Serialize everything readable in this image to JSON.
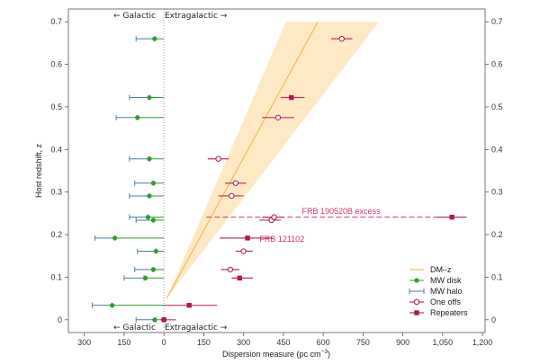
{
  "colors": {
    "dmz_line": "#f2b441",
    "dmz_band": "#fde9c4",
    "mw_disk": "#2ca02c",
    "mw_halo": "#4a7fa8",
    "frb": "#b0174f",
    "frb_err": "#c5305f",
    "annot": "#d6336c",
    "zero_line": "#888888"
  },
  "chart_data": {
    "type": "scatter",
    "xlabel": "Dispersion measure (pc cm",
    "xlabel_sup": "−3",
    "xlabel_close": ")",
    "ylabel": "Host redshift, z",
    "xlim": [
      -360,
      1210
    ],
    "ylim": [
      -0.03,
      0.73
    ],
    "xticks": [
      -300,
      -150,
      0,
      150,
      300,
      450,
      600,
      750,
      900,
      1050,
      1200
    ],
    "xtick_labels": [
      "300",
      "150",
      "0",
      "150",
      "300",
      "450",
      "600",
      "750",
      "900",
      "1,050",
      "1,200"
    ],
    "yticks": [
      0,
      0.1,
      0.2,
      0.3,
      0.4,
      0.5,
      0.6,
      0.7
    ],
    "ytick_labels": [
      "0",
      "0.1",
      "0.2",
      "0.3",
      "0.4",
      "0.5",
      "0.6",
      "0.7"
    ],
    "top_labels": {
      "left": "← Galactic",
      "right": "Extragalactic →"
    },
    "bottom_labels": {
      "left": "← Galactic",
      "right": "Extragalactic →"
    },
    "legend": [
      {
        "key": "dmz",
        "label": "DM–z"
      },
      {
        "key": "disk",
        "label": "MW disk"
      },
      {
        "key": "halo",
        "label": "MW halo"
      },
      {
        "key": "oneoff",
        "label": "One offs"
      },
      {
        "key": "repeater",
        "label": "Repeaters"
      }
    ],
    "dmz": {
      "line": [
        [
          10,
          0.05
        ],
        [
          580,
          0.7
        ]
      ],
      "band_lower": [
        [
          10,
          0.05
        ],
        [
          810,
          0.7
        ]
      ],
      "band_upper": [
        [
          10,
          0.05
        ],
        [
          460,
          0.7
        ]
      ]
    },
    "mw_disk": [
      {
        "z": 0.0,
        "dm": -35,
        "err": 35
      },
      {
        "z": 0.034,
        "dm": -195,
        "err": 195
      },
      {
        "z": 0.098,
        "dm": -70,
        "err": 70
      },
      {
        "z": 0.118,
        "dm": -40,
        "err": 40
      },
      {
        "z": 0.161,
        "dm": -30,
        "err": 30
      },
      {
        "z": 0.192,
        "dm": -185,
        "err": 185
      },
      {
        "z": 0.234,
        "dm": -40,
        "err": 40
      },
      {
        "z": 0.241,
        "dm": -60,
        "err": 60
      },
      {
        "z": 0.291,
        "dm": -55,
        "err": 55
      },
      {
        "z": 0.321,
        "dm": -40,
        "err": 40
      },
      {
        "z": 0.378,
        "dm": -55,
        "err": 55
      },
      {
        "z": 0.475,
        "dm": -100,
        "err": 100
      },
      {
        "z": 0.522,
        "dm": -55,
        "err": 55
      },
      {
        "z": 0.66,
        "dm": -35,
        "err": 35
      }
    ],
    "mw_halo": [
      {
        "z": 0.0,
        "x1": -105,
        "x2": -30
      },
      {
        "z": 0.034,
        "x1": -270,
        "x2": -195
      },
      {
        "z": 0.098,
        "x1": -150,
        "x2": -75
      },
      {
        "z": 0.118,
        "x1": -110,
        "x2": -40
      },
      {
        "z": 0.161,
        "x1": -100,
        "x2": -30
      },
      {
        "z": 0.192,
        "x1": -260,
        "x2": -185
      },
      {
        "z": 0.234,
        "x1": -105,
        "x2": -40
      },
      {
        "z": 0.241,
        "x1": -130,
        "x2": -60
      },
      {
        "z": 0.291,
        "x1": -130,
        "x2": -55
      },
      {
        "z": 0.321,
        "x1": -110,
        "x2": -40
      },
      {
        "z": 0.378,
        "x1": -130,
        "x2": -55
      },
      {
        "z": 0.475,
        "x1": -180,
        "x2": -100
      },
      {
        "z": 0.522,
        "x1": -130,
        "x2": -55
      },
      {
        "z": 0.66,
        "x1": -105,
        "x2": -35
      }
    ],
    "one_offs": [
      {
        "z": 0.118,
        "dm": 250,
        "lo": 215,
        "hi": 285
      },
      {
        "z": 0.161,
        "dm": 300,
        "lo": 270,
        "hi": 335
      },
      {
        "z": 0.234,
        "dm": 405,
        "lo": 360,
        "hi": 440
      },
      {
        "z": 0.241,
        "dm": 415,
        "lo": 370,
        "hi": 450
      },
      {
        "z": 0.291,
        "dm": 255,
        "lo": 205,
        "hi": 300
      },
      {
        "z": 0.321,
        "dm": 270,
        "lo": 230,
        "hi": 310
      },
      {
        "z": 0.378,
        "dm": 205,
        "lo": 165,
        "hi": 245
      },
      {
        "z": 0.475,
        "dm": 430,
        "lo": 370,
        "hi": 490
      },
      {
        "z": 0.66,
        "dm": 670,
        "lo": 630,
        "hi": 710
      }
    ],
    "repeaters": [
      {
        "z": 0.0,
        "dm": 0,
        "lo": -15,
        "hi": 45
      },
      {
        "z": 0.034,
        "dm": 95,
        "lo": 0,
        "hi": 200
      },
      {
        "z": 0.098,
        "dm": 285,
        "lo": 255,
        "hi": 335
      },
      {
        "z": 0.192,
        "dm": 315,
        "lo": 210,
        "hi": 410
      },
      {
        "z": 0.241,
        "dm": 1085,
        "lo": 1030,
        "hi": 1140
      },
      {
        "z": 0.522,
        "dm": 480,
        "lo": 440,
        "hi": 530
      }
    ],
    "annotations": [
      {
        "text": "FRB 190520B excess",
        "x": 520,
        "z": 0.255,
        "line_x1": 160,
        "line_x2": 1085,
        "line_z": 0.241
      },
      {
        "text": "FRB 121102",
        "x": 360,
        "z": 0.19
      }
    ]
  }
}
